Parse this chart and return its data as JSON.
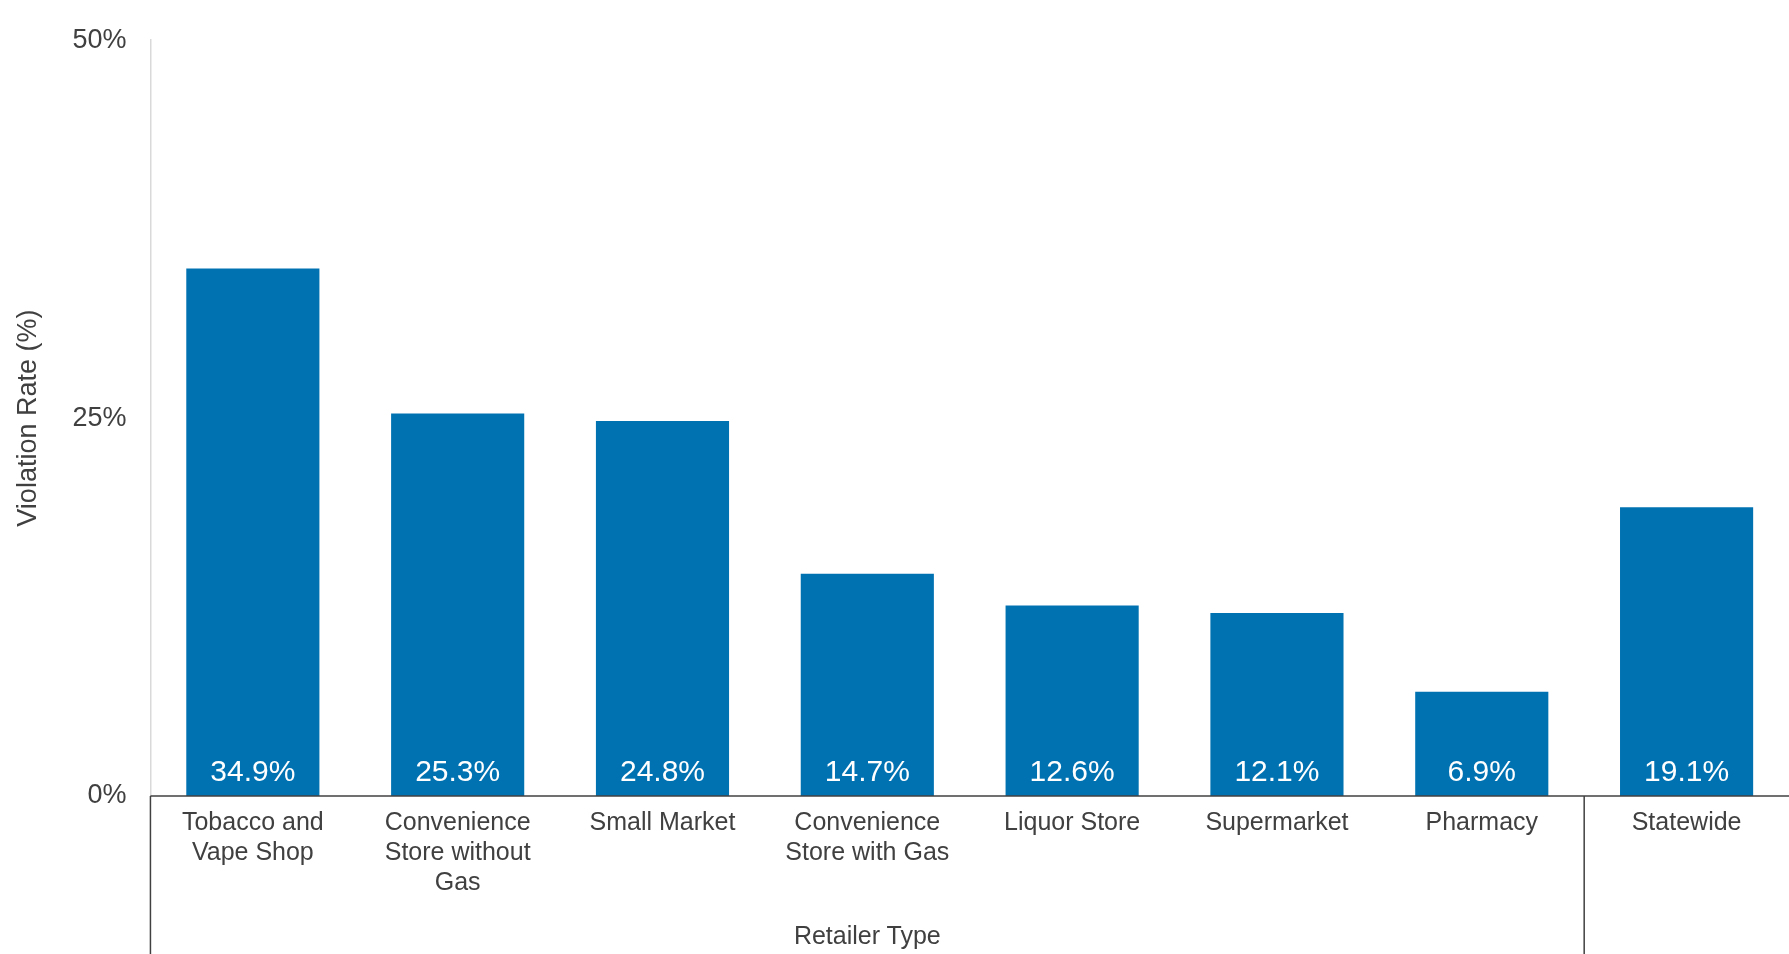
{
  "chart_data": {
    "type": "bar",
    "ylabel": "Violation Rate (%)",
    "xlabel": "Retailer Type",
    "categories": [
      "Tobacco and Vape Shop",
      "Convenience Store without Gas",
      "Small Market",
      "Convenience Store with Gas",
      "Liquor Store",
      "Supermarket",
      "Pharmacy",
      "Statewide"
    ],
    "values": [
      34.9,
      25.3,
      24.8,
      14.7,
      12.6,
      12.1,
      6.9,
      19.1
    ],
    "value_labels": [
      "34.9%",
      "25.3%",
      "24.8%",
      "14.7%",
      "12.6%",
      "12.1%",
      "6.9%",
      "19.1%"
    ],
    "color": "#0072b2",
    "ylim": [
      0,
      50
    ],
    "yticks": [
      {
        "value": 0,
        "label": "0%"
      },
      {
        "value": 25,
        "label": "25%"
      },
      {
        "value": 50,
        "label": "50%"
      }
    ],
    "grid": false,
    "legend": false
  }
}
